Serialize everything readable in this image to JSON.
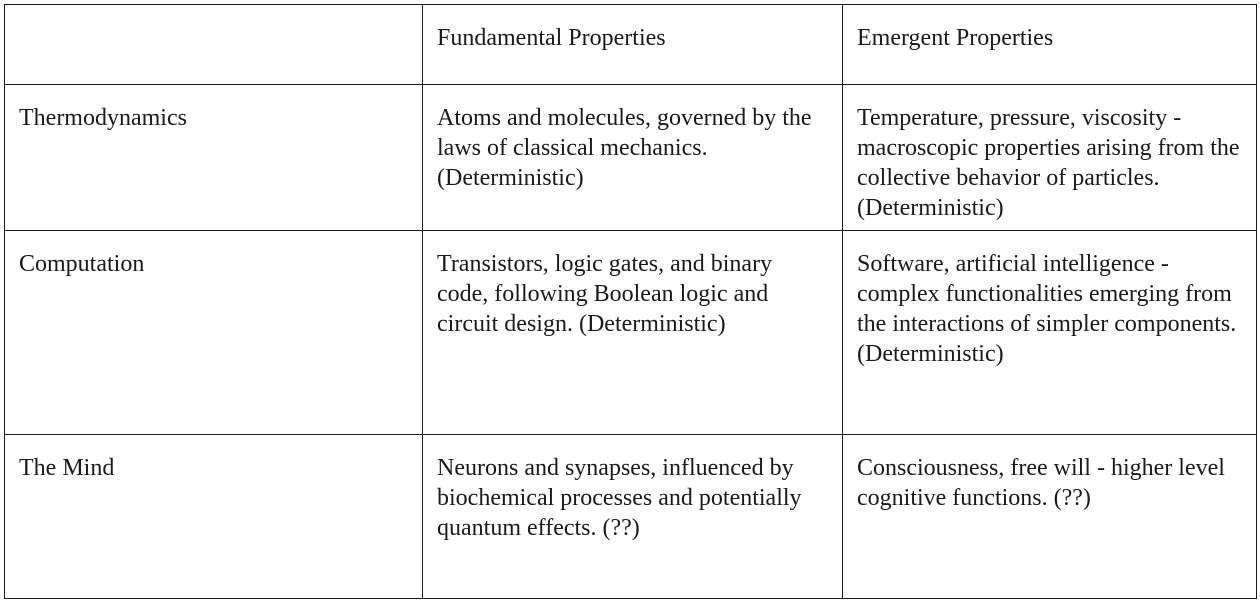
{
  "table": {
    "headers": [
      "",
      "Fundamental Properties",
      "Emergent Properties"
    ],
    "rows": [
      {
        "label": "Thermodynamics",
        "fundamental": "Atoms and molecules, governed by the laws of classical mechanics. (Deterministic)",
        "emergent": "Temperature, pressure, viscosity - macroscopic properties arising from the collective behavior of particles. (Deterministic)"
      },
      {
        "label": "Computation",
        "fundamental": "Transistors, logic gates, and binary code, following Boolean logic and circuit design. (Deterministic)",
        "emergent": "Software, artificial intelligence - complex functionalities emerging from the interactions of simpler components. (Deterministic)"
      },
      {
        "label": "The Mind",
        "fundamental": "Neurons and synapses, influenced by biochemical processes and potentially quantum effects. (??)",
        "emergent": "Consciousness, free will - higher level cognitive functions. (??)"
      }
    ]
  }
}
